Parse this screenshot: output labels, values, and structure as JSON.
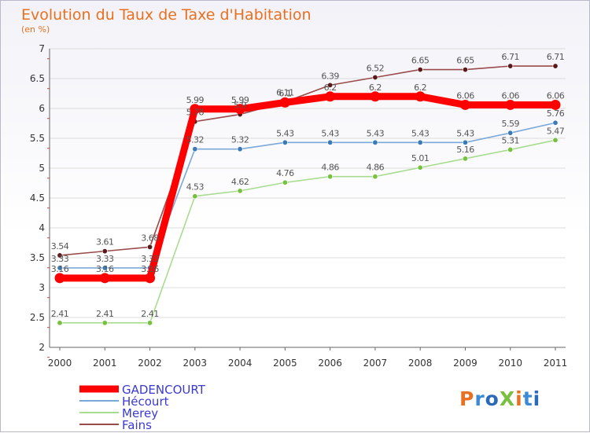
{
  "chart_data": {
    "type": "line",
    "title": "Evolution du Taux de Taxe d'Habitation",
    "subtitle": "(en %)",
    "x": [
      "2000",
      "2001",
      "2002",
      "2003",
      "2004",
      "2005",
      "2006",
      "2007",
      "2008",
      "2009",
      "2010",
      "2011"
    ],
    "y_ticks": [
      "2",
      "2.5",
      "3",
      "3.5",
      "4",
      "4.5",
      "5",
      "5.5",
      "6",
      "6.5",
      "7"
    ],
    "ylim": [
      2,
      7
    ],
    "grid": "horizontal",
    "legend_position": "bottom-left",
    "series": [
      {
        "name": "Fains",
        "color": "#9a4a4a",
        "marker": "#5a1a1a",
        "values": [
          3.54,
          3.61,
          3.68,
          5.78,
          5.9,
          6.11,
          6.39,
          6.52,
          6.65,
          6.65,
          6.71,
          6.71
        ],
        "labels": [
          "3.54",
          "3.61",
          "3.68",
          "5.78",
          "5.9",
          "6.11",
          "6.39",
          "6.52",
          "6.65",
          "6.65",
          "6.71",
          "6.71"
        ]
      },
      {
        "name": "Hécourt",
        "color": "#7aa8d8",
        "marker": "#3a7ab8",
        "values": [
          3.33,
          3.33,
          3.33,
          5.32,
          5.32,
          5.43,
          5.43,
          5.43,
          5.43,
          5.43,
          5.59,
          5.76
        ],
        "labels": [
          "3.33",
          "3.33",
          "3.33",
          "5.32",
          "5.32",
          "5.43",
          "5.43",
          "5.43",
          "5.43",
          "5.43",
          "5.59",
          "5.76"
        ]
      },
      {
        "name": "Merey",
        "color": "#a8dc90",
        "marker": "#78c040",
        "values": [
          2.41,
          2.41,
          2.41,
          4.53,
          4.62,
          4.76,
          4.86,
          4.86,
          5.01,
          5.16,
          5.31,
          5.47
        ],
        "labels": [
          "2.41",
          "2.41",
          "2.41",
          "4.53",
          "4.62",
          "4.76",
          "4.86",
          "4.86",
          "5.01",
          "5.16",
          "5.31",
          "5.47"
        ]
      },
      {
        "name": "GADENCOURT",
        "color": "#ff0000",
        "marker": "#ff0000",
        "values": [
          3.16,
          3.16,
          3.16,
          5.99,
          5.99,
          6.1,
          6.2,
          6.2,
          6.2,
          6.06,
          6.06,
          6.06
        ],
        "labels": [
          "3.16",
          "3.16",
          "3.16",
          "5.99",
          "5.99",
          "6.1",
          "6.2",
          "6.2",
          "6.2",
          "6.06",
          "6.06",
          "6.06"
        ]
      }
    ],
    "legend": [
      "GADENCOURT",
      "Hécourt",
      "Merey",
      "Fains"
    ]
  },
  "brand": {
    "logo_text": "ProXiti"
  }
}
